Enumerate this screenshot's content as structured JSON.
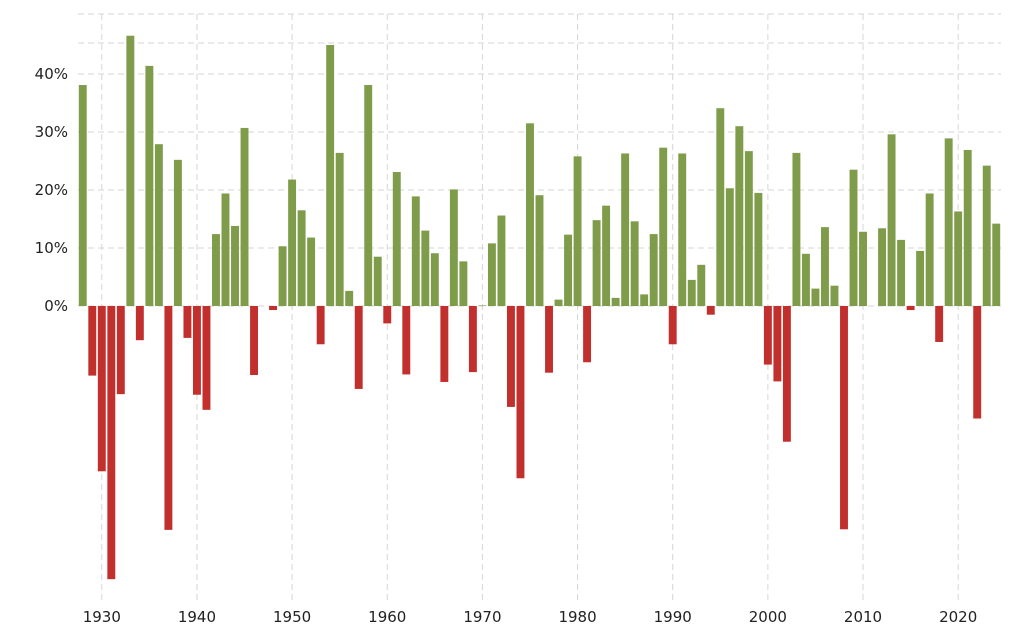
{
  "chart_data": {
    "type": "bar",
    "title": "",
    "xlabel": "",
    "ylabel": "",
    "grid": true,
    "ylim": [
      -50,
      50
    ],
    "xlim": [
      1927.5,
      2024.5
    ],
    "y_ticks": [
      {
        "value": 0,
        "label": "0%"
      },
      {
        "value": 10,
        "label": "10%"
      },
      {
        "value": 20,
        "label": "20%"
      },
      {
        "value": 30,
        "label": "30%"
      },
      {
        "value": 40,
        "label": "40%"
      }
    ],
    "x_ticks": [
      {
        "value": 1930,
        "label": "1930"
      },
      {
        "value": 1940,
        "label": "1940"
      },
      {
        "value": 1950,
        "label": "1950"
      },
      {
        "value": 1960,
        "label": "1960"
      },
      {
        "value": 1970,
        "label": "1970"
      },
      {
        "value": 1980,
        "label": "1980"
      },
      {
        "value": 1990,
        "label": "1990"
      },
      {
        "value": 2000,
        "label": "2000"
      },
      {
        "value": 2010,
        "label": "2010"
      },
      {
        "value": 2020,
        "label": "2020"
      }
    ],
    "colors": {
      "positive": "#7f9c4b",
      "negative": "#c2302e",
      "grid": "#d6d6d6"
    },
    "x": [
      1928,
      1929,
      1930,
      1931,
      1932,
      1933,
      1934,
      1935,
      1936,
      1937,
      1938,
      1939,
      1940,
      1941,
      1942,
      1943,
      1944,
      1945,
      1946,
      1947,
      1948,
      1949,
      1950,
      1951,
      1952,
      1953,
      1954,
      1955,
      1956,
      1957,
      1958,
      1959,
      1960,
      1961,
      1962,
      1963,
      1964,
      1965,
      1966,
      1967,
      1968,
      1969,
      1970,
      1971,
      1972,
      1973,
      1974,
      1975,
      1976,
      1977,
      1978,
      1979,
      1980,
      1981,
      1982,
      1983,
      1984,
      1985,
      1986,
      1987,
      1988,
      1989,
      1990,
      1991,
      1992,
      1993,
      1994,
      1995,
      1996,
      1997,
      1998,
      1999,
      2000,
      2001,
      2002,
      2003,
      2004,
      2005,
      2006,
      2007,
      2008,
      2009,
      2010,
      2011,
      2012,
      2013,
      2014,
      2015,
      2016,
      2017,
      2018,
      2019,
      2020,
      2021,
      2022,
      2023,
      2024
    ],
    "values": [
      38.1,
      -12.0,
      -28.5,
      -47.1,
      -15.2,
      46.6,
      -5.9,
      41.4,
      27.9,
      -38.6,
      25.2,
      -5.5,
      -15.3,
      -17.9,
      12.4,
      19.4,
      13.8,
      30.7,
      -11.9,
      0.0,
      -0.7,
      10.3,
      21.8,
      16.5,
      11.8,
      -6.6,
      45.0,
      26.4,
      2.6,
      -14.3,
      38.1,
      8.5,
      -3.0,
      23.1,
      -11.8,
      18.9,
      13.0,
      9.1,
      -13.1,
      20.1,
      7.7,
      -11.4,
      0.1,
      10.8,
      15.6,
      -17.4,
      -29.7,
      31.5,
      19.1,
      -11.5,
      1.1,
      12.3,
      25.8,
      -9.7,
      14.8,
      17.3,
      1.4,
      26.3,
      14.6,
      2.0,
      12.4,
      27.3,
      -6.6,
      26.3,
      4.5,
      7.1,
      -1.5,
      34.1,
      20.3,
      31.0,
      26.7,
      19.5,
      -10.1,
      -13.0,
      -23.4,
      26.4,
      9.0,
      3.0,
      13.6,
      3.5,
      -38.5,
      23.5,
      12.8,
      0.0,
      13.4,
      29.6,
      11.4,
      -0.7,
      9.5,
      19.4,
      -6.2,
      28.9,
      16.3,
      26.9,
      -19.4,
      24.2,
      14.2
    ]
  }
}
